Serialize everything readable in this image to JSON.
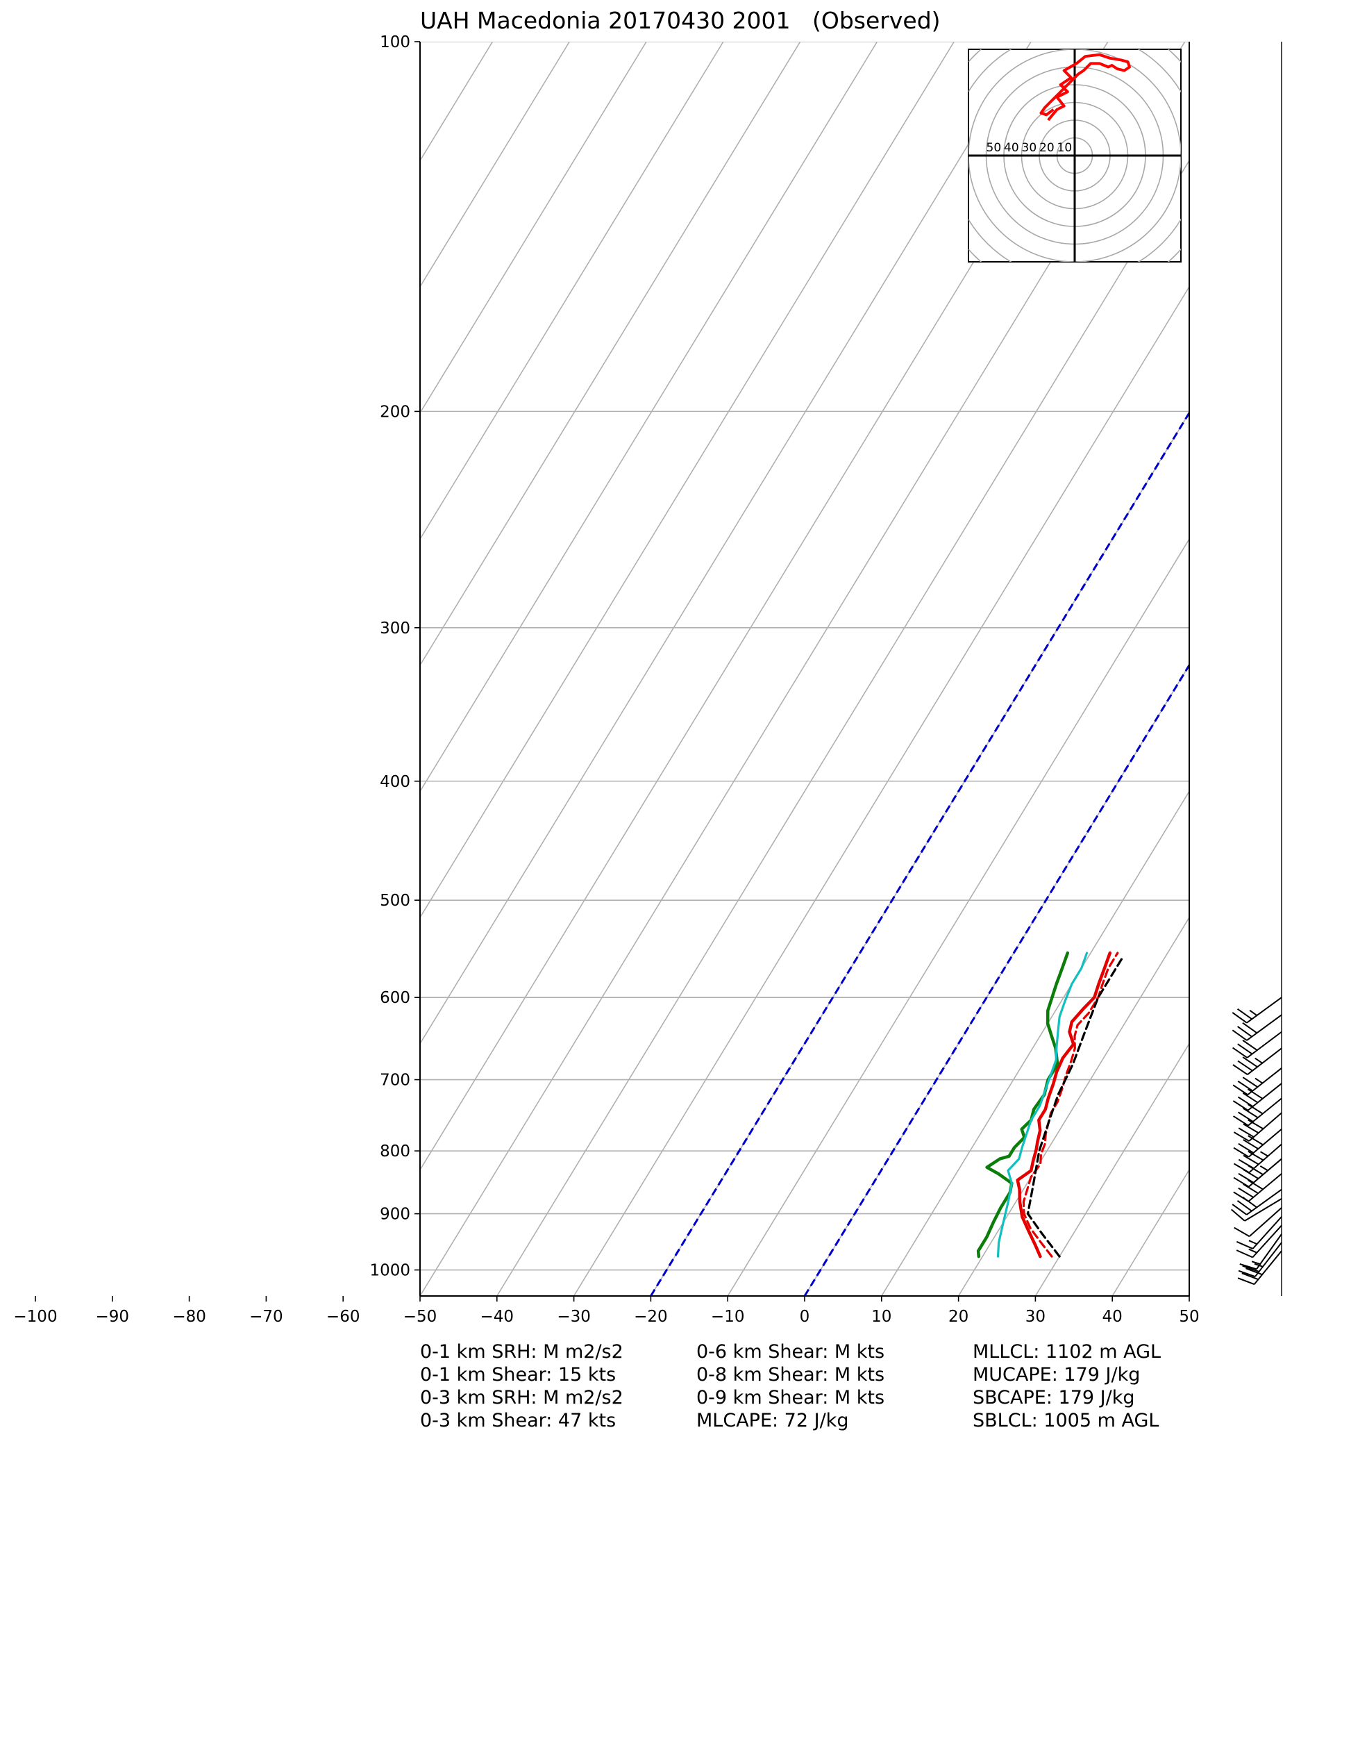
{
  "title": "UAH Macedonia 20170430 2001   (Observed)",
  "chart_data": {
    "type": "skew-t",
    "title": "UAH Macedonia 20170430 2001   (Observed)",
    "xlabel": "",
    "ylabel": "",
    "pressure_ticks": [
      "100",
      "200",
      "300",
      "400",
      "500",
      "600",
      "700",
      "800",
      "900",
      "1000"
    ],
    "temperature_ticks": [
      "−100",
      "−90",
      "−80",
      "−70",
      "−60",
      "−50",
      "−40",
      "−30",
      "−20",
      "−10",
      "0",
      "10",
      "20",
      "30",
      "40",
      "50"
    ],
    "xlim": [
      -50,
      50
    ],
    "plim": [
      1050,
      100
    ],
    "grid": true,
    "colors": {
      "temperature": "#e50000",
      "parcel_virtual": "#e50000",
      "dewpoint": "#0a7d0a",
      "wetbulb": "#10c0c0",
      "parcel": "#000000",
      "reference_isotherms": "#0000cc",
      "grid": "#b0b0b0",
      "hodograph": "#ff0000"
    },
    "series": [
      {
        "name": "",
        "kind": "temperature",
        "points": [
          [
            27.5,
            975
          ],
          [
            26.0,
            955
          ],
          [
            24.0,
            930
          ],
          [
            22.0,
            905
          ],
          [
            20.5,
            880
          ],
          [
            19.5,
            860
          ],
          [
            18.5,
            845
          ],
          [
            19.5,
            830
          ],
          [
            19.0,
            815
          ],
          [
            18.5,
            798
          ],
          [
            18.0,
            785
          ],
          [
            17.5,
            770
          ],
          [
            16.5,
            755
          ],
          [
            16.5,
            740
          ],
          [
            16.0,
            725
          ],
          [
            15.5,
            705
          ],
          [
            15.0,
            690
          ],
          [
            14.7,
            672
          ],
          [
            15.0,
            655
          ],
          [
            13.5,
            640
          ],
          [
            13.0,
            628
          ],
          [
            13.5,
            612
          ],
          [
            14.0,
            600
          ],
          [
            13.5,
            585
          ],
          [
            13.0,
            568
          ],
          [
            12.5,
            552
          ]
        ]
      },
      {
        "name": "",
        "kind": "parcel_virtual",
        "points": [
          [
            29.0,
            975
          ],
          [
            26.5,
            950
          ],
          [
            24.0,
            925
          ],
          [
            22.0,
            900
          ],
          [
            21.0,
            880
          ],
          [
            20.5,
            860
          ],
          [
            20.0,
            840
          ],
          [
            20.2,
            820
          ],
          [
            19.5,
            805
          ],
          [
            19.2,
            790
          ],
          [
            18.5,
            775
          ],
          [
            18.0,
            760
          ],
          [
            17.5,
            745
          ],
          [
            17.5,
            730
          ],
          [
            17.0,
            710
          ],
          [
            16.5,
            695
          ],
          [
            16.0,
            675
          ],
          [
            15.5,
            660
          ],
          [
            14.5,
            645
          ],
          [
            14.0,
            632
          ],
          [
            14.5,
            618
          ],
          [
            14.5,
            600
          ],
          [
            14.0,
            585
          ],
          [
            13.5,
            568
          ],
          [
            13.5,
            552
          ]
        ]
      },
      {
        "name": "",
        "kind": "dewpoint",
        "points": [
          [
            19.5,
            975
          ],
          [
            19.0,
            965
          ],
          [
            19.0,
            940
          ],
          [
            18.7,
            915
          ],
          [
            18.5,
            890
          ],
          [
            18.5,
            865
          ],
          [
            18.0,
            850
          ],
          [
            15.5,
            835
          ],
          [
            13.5,
            825
          ],
          [
            14.5,
            812
          ],
          [
            15.5,
            808
          ],
          [
            15.5,
            795
          ],
          [
            16.0,
            780
          ],
          [
            15.0,
            768
          ],
          [
            15.5,
            755
          ],
          [
            15.0,
            740
          ],
          [
            15.2,
            720
          ],
          [
            14.5,
            700
          ],
          [
            14.5,
            680
          ],
          [
            13.0,
            660
          ],
          [
            11.5,
            645
          ],
          [
            10.0,
            630
          ],
          [
            9.0,
            615
          ],
          [
            8.5,
            600
          ],
          [
            8.0,
            585
          ],
          [
            7.5,
            568
          ],
          [
            7.0,
            552
          ]
        ]
      },
      {
        "name": "",
        "kind": "wetbulb",
        "points": [
          [
            22.0,
            975
          ],
          [
            21.0,
            950
          ],
          [
            20.0,
            915
          ],
          [
            19.0,
            880
          ],
          [
            18.0,
            850
          ],
          [
            16.5,
            830
          ],
          [
            17.0,
            812
          ],
          [
            16.5,
            795
          ],
          [
            16.0,
            775
          ],
          [
            15.5,
            755
          ],
          [
            15.5,
            735
          ],
          [
            15.0,
            715
          ],
          [
            14.5,
            695
          ],
          [
            14.0,
            675
          ],
          [
            13.0,
            658
          ],
          [
            12.0,
            640
          ],
          [
            11.0,
            622
          ],
          [
            10.5,
            605
          ],
          [
            10.0,
            585
          ],
          [
            10.0,
            568
          ],
          [
            9.5,
            552
          ]
        ]
      },
      {
        "name": "",
        "kind": "parcel",
        "points": [
          [
            30.0,
            975
          ],
          [
            26.0,
            935
          ],
          [
            22.5,
            900
          ],
          [
            21.0,
            855
          ],
          [
            19.0,
            800
          ],
          [
            18.0,
            760
          ],
          [
            17.0,
            720
          ],
          [
            16.5,
            680
          ],
          [
            15.5,
            640
          ],
          [
            14.5,
            600
          ],
          [
            14.5,
            557
          ]
        ]
      }
    ],
    "reference_isotherms_surface_temp": [
      -20,
      0
    ],
    "hodograph": {
      "rings": [
        "50",
        "40",
        "30",
        "20",
        "10"
      ],
      "range_kts": 60,
      "points": [
        [
          -15,
          20
        ],
        [
          -10,
          26
        ],
        [
          -6,
          28
        ],
        [
          -10,
          33
        ],
        [
          -4,
          36
        ],
        [
          -8,
          40
        ],
        [
          -2,
          44
        ],
        [
          -6,
          48
        ],
        [
          1,
          52
        ],
        [
          6,
          56
        ],
        [
          14,
          57
        ],
        [
          20,
          55
        ],
        [
          26,
          54
        ],
        [
          30,
          53
        ],
        [
          31,
          50
        ],
        [
          28,
          48
        ],
        [
          24,
          49
        ],
        [
          21,
          51
        ],
        [
          19,
          50
        ],
        [
          14,
          52
        ],
        [
          9,
          52
        ],
        [
          5,
          48
        ],
        [
          2,
          46
        ],
        [
          -1,
          43
        ],
        [
          -4,
          40
        ],
        [
          -7,
          37
        ],
        [
          -11,
          33
        ],
        [
          -14,
          30
        ],
        [
          -17,
          27
        ],
        [
          -19,
          24
        ],
        [
          -16,
          23
        ],
        [
          -12,
          26
        ]
      ]
    },
    "wind_barbs": [
      {
        "p": 965,
        "u": 18,
        "v": 22
      },
      {
        "p": 950,
        "u": 14,
        "v": 18
      },
      {
        "p": 935,
        "u": 10,
        "v": 14
      },
      {
        "p": 920,
        "u": 10,
        "v": 11
      },
      {
        "p": 905,
        "u": 9,
        "v": 10
      },
      {
        "p": 890,
        "u": 9,
        "v": 8
      },
      {
        "p": 875,
        "u": 10,
        "v": 6
      },
      {
        "p": 860,
        "u": 25,
        "v": 18
      },
      {
        "p": 835,
        "u": 30,
        "v": 25
      },
      {
        "p": 812,
        "u": 33,
        "v": 28
      },
      {
        "p": 790,
        "u": 32,
        "v": 28
      },
      {
        "p": 768,
        "u": 32,
        "v": 27
      },
      {
        "p": 745,
        "u": 30,
        "v": 26
      },
      {
        "p": 725,
        "u": 32,
        "v": 26
      },
      {
        "p": 705,
        "u": 30,
        "v": 24
      },
      {
        "p": 685,
        "u": 28,
        "v": 22
      },
      {
        "p": 660,
        "u": 26,
        "v": 20
      },
      {
        "p": 640,
        "u": 24,
        "v": 18
      },
      {
        "p": 620,
        "u": 26,
        "v": 19
      },
      {
        "p": 600,
        "u": 22,
        "v": 16
      }
    ],
    "annotations": {
      "col1": [
        "0-1 km SRH: M m2/s2",
        "0-1 km Shear: 15 kts",
        "0-3 km SRH: M m2/s2",
        "0-3 km Shear: 47 kts"
      ],
      "col2": [
        "0-6 km Shear: M kts",
        "0-8 km Shear: M kts",
        "0-9 km Shear: M kts",
        "MLCAPE: 72 J/kg"
      ],
      "col3": [
        "MLLCL: 1102 m AGL",
        "MUCAPE: 179 J/kg",
        "SBCAPE: 179 J/kg",
        "SBLCL: 1005 m AGL"
      ]
    }
  }
}
